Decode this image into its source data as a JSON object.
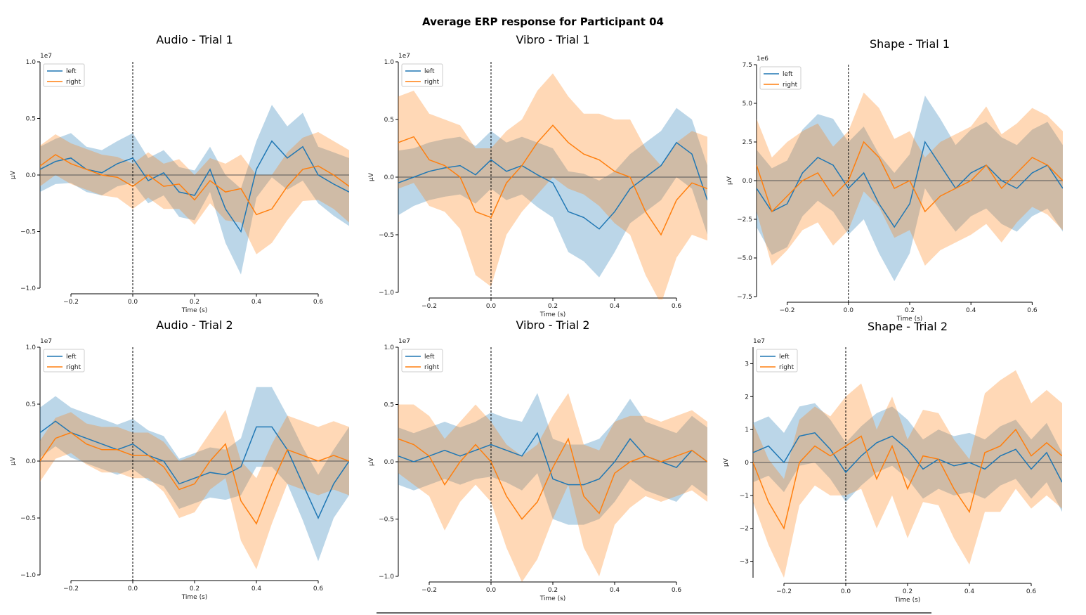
{
  "figure_title": "Average ERP response for Participant 04",
  "colors": {
    "left": "#1f77b4",
    "right": "#ff7f0e"
  },
  "chart_data": [
    {
      "type": "line",
      "title": "Audio - Trial 1",
      "xlabel": "Time (s)",
      "ylabel": "µV",
      "offset_label": "1e7",
      "xlim": [
        -0.3,
        0.7
      ],
      "ylim": [
        -1.0,
        1.0
      ],
      "xticks": [
        -0.2,
        0.0,
        0.2,
        0.4,
        0.6
      ],
      "xticklabels": [
        "−0.2",
        "0.0",
        "0.2",
        "0.4",
        "0.6"
      ],
      "yticks": [
        -1.0,
        -0.5,
        0.0,
        0.5,
        1.0
      ],
      "yticklabels": [
        "−1.0",
        "−0.5",
        "0.0",
        "0.5",
        "1.0"
      ],
      "legend": "top-left",
      "series": [
        {
          "name": "left",
          "x": [
            -0.3,
            -0.25,
            -0.2,
            -0.15,
            -0.1,
            -0.05,
            0,
            0.05,
            0.1,
            0.15,
            0.2,
            0.25,
            0.3,
            0.35,
            0.4,
            0.45,
            0.5,
            0.55,
            0.6,
            0.65,
            0.7
          ],
          "y": [
            0.05,
            0.12,
            0.15,
            0.05,
            0.02,
            0.1,
            0.15,
            -0.05,
            0.02,
            -0.15,
            -0.18,
            0.05,
            -0.3,
            -0.5,
            0.05,
            0.3,
            0.15,
            0.25,
            0.0,
            -0.08,
            -0.15
          ],
          "ci": [
            0.2,
            0.2,
            0.22,
            0.2,
            0.2,
            0.2,
            0.22,
            0.2,
            0.2,
            0.22,
            0.22,
            0.2,
            0.3,
            0.38,
            0.25,
            0.32,
            0.28,
            0.3,
            0.25,
            0.28,
            0.3
          ]
        },
        {
          "name": "right",
          "x": [
            -0.3,
            -0.25,
            -0.2,
            -0.15,
            -0.1,
            -0.05,
            0,
            0.05,
            0.1,
            0.15,
            0.2,
            0.25,
            0.3,
            0.35,
            0.4,
            0.45,
            0.5,
            0.55,
            0.6,
            0.65,
            0.7
          ],
          "y": [
            0.08,
            0.18,
            0.1,
            0.05,
            0.0,
            -0.02,
            -0.1,
            0.0,
            -0.1,
            -0.08,
            -0.22,
            -0.05,
            -0.15,
            -0.12,
            -0.35,
            -0.3,
            -0.1,
            0.05,
            0.08,
            0.0,
            -0.1
          ],
          "ci": [
            0.18,
            0.18,
            0.18,
            0.18,
            0.18,
            0.18,
            0.2,
            0.2,
            0.2,
            0.22,
            0.22,
            0.2,
            0.25,
            0.3,
            0.35,
            0.3,
            0.3,
            0.28,
            0.3,
            0.3,
            0.32
          ]
        }
      ]
    },
    {
      "type": "line",
      "title": "Vibro - Trial 1",
      "xlabel": "Time (s)",
      "ylabel": "µV",
      "offset_label": "1e7",
      "xlim": [
        -0.3,
        0.7
      ],
      "ylim": [
        -1.0,
        1.0
      ],
      "xticks": [
        -0.2,
        0.0,
        0.2,
        0.4,
        0.6
      ],
      "xticklabels": [
        "−0.2",
        "0.0",
        "0.2",
        "0.4",
        "0.6"
      ],
      "yticks": [
        -1.0,
        -0.5,
        0.0,
        0.5,
        1.0
      ],
      "yticklabels": [
        "−1.0",
        "−0.5",
        "0.0",
        "0.5",
        "1.0"
      ],
      "legend": "top-left",
      "series": [
        {
          "name": "left",
          "x": [
            -0.3,
            -0.25,
            -0.2,
            -0.15,
            -0.1,
            -0.05,
            0,
            0.05,
            0.1,
            0.15,
            0.2,
            0.25,
            0.3,
            0.35,
            0.4,
            0.45,
            0.5,
            0.55,
            0.6,
            0.65,
            0.7
          ],
          "y": [
            -0.05,
            0.0,
            0.05,
            0.08,
            0.1,
            0.02,
            0.15,
            0.05,
            0.1,
            0.02,
            -0.05,
            -0.3,
            -0.35,
            -0.45,
            -0.3,
            -0.1,
            0.0,
            0.1,
            0.3,
            0.2,
            -0.2
          ],
          "ci": [
            0.28,
            0.25,
            0.25,
            0.25,
            0.25,
            0.25,
            0.25,
            0.25,
            0.25,
            0.28,
            0.3,
            0.35,
            0.38,
            0.42,
            0.35,
            0.3,
            0.3,
            0.3,
            0.3,
            0.3,
            0.3
          ]
        },
        {
          "name": "right",
          "x": [
            -0.3,
            -0.25,
            -0.2,
            -0.15,
            -0.1,
            -0.05,
            0,
            0.05,
            0.1,
            0.15,
            0.2,
            0.25,
            0.3,
            0.35,
            0.4,
            0.45,
            0.5,
            0.55,
            0.6,
            0.65,
            0.7
          ],
          "y": [
            0.3,
            0.35,
            0.15,
            0.1,
            0.0,
            -0.3,
            -0.35,
            -0.05,
            0.1,
            0.3,
            0.45,
            0.3,
            0.2,
            0.15,
            0.05,
            0.0,
            -0.3,
            -0.5,
            -0.2,
            -0.05,
            -0.1
          ],
          "ci": [
            0.4,
            0.4,
            0.4,
            0.4,
            0.45,
            0.55,
            0.6,
            0.45,
            0.4,
            0.45,
            0.45,
            0.4,
            0.35,
            0.4,
            0.45,
            0.5,
            0.55,
            0.6,
            0.5,
            0.45,
            0.45
          ]
        }
      ]
    },
    {
      "type": "line",
      "title": "Shape - Trial 1",
      "xlabel": "Time (s)",
      "ylabel": "µV",
      "offset_label": "1e6",
      "xlim": [
        -0.3,
        0.7
      ],
      "ylim": [
        -7.5,
        7.5
      ],
      "xticks": [
        -0.2,
        0.0,
        0.2,
        0.4,
        0.6
      ],
      "xticklabels": [
        "−0.2",
        "0.0",
        "0.2",
        "0.4",
        "0.6"
      ],
      "yticks": [
        -7.5,
        -5.0,
        -2.5,
        0.0,
        2.5,
        5.0,
        7.5
      ],
      "yticklabels": [
        "−7.5",
        "−5.0",
        "−2.5",
        "0.0",
        "2.5",
        "5.0",
        "7.5"
      ],
      "legend": "top-left",
      "series": [
        {
          "name": "left",
          "x": [
            -0.3,
            -0.25,
            -0.2,
            -0.15,
            -0.1,
            -0.05,
            0,
            0.05,
            0.1,
            0.15,
            0.2,
            0.25,
            0.3,
            0.35,
            0.4,
            0.45,
            0.5,
            0.55,
            0.6,
            0.65,
            0.7
          ],
          "y": [
            -0.5,
            -2.0,
            -1.5,
            0.5,
            1.5,
            1.0,
            -0.5,
            0.5,
            -1.5,
            -3.0,
            -1.5,
            2.5,
            1.0,
            -0.5,
            0.5,
            1.0,
            0.0,
            -0.5,
            0.5,
            1.0,
            -0.5
          ],
          "ci": [
            2.5,
            2.8,
            2.8,
            2.8,
            2.8,
            3.0,
            3.0,
            3.0,
            3.2,
            3.5,
            3.2,
            3.0,
            3.0,
            2.8,
            2.8,
            2.8,
            2.8,
            2.8,
            2.8,
            2.8,
            2.8
          ]
        },
        {
          "name": "right",
          "x": [
            -0.3,
            -0.25,
            -0.2,
            -0.15,
            -0.1,
            -0.05,
            0,
            0.05,
            0.1,
            0.15,
            0.2,
            0.25,
            0.3,
            0.35,
            0.4,
            0.45,
            0.5,
            0.55,
            0.6,
            0.65,
            0.7
          ],
          "y": [
            1.0,
            -2.0,
            -1.0,
            0.0,
            0.5,
            -1.0,
            0.0,
            2.5,
            1.5,
            -0.5,
            0.0,
            -2.0,
            -1.0,
            -0.5,
            0.0,
            1.0,
            -0.5,
            0.5,
            1.5,
            1.0,
            0.0
          ],
          "ci": [
            3.0,
            3.5,
            3.5,
            3.2,
            3.2,
            3.2,
            3.2,
            3.2,
            3.2,
            3.2,
            3.2,
            3.5,
            3.5,
            3.5,
            3.5,
            3.8,
            3.5,
            3.2,
            3.2,
            3.2,
            3.2
          ]
        }
      ]
    },
    {
      "type": "line",
      "title": "Audio -  Trial 2",
      "xlabel": "Time (s)",
      "ylabel": "µV",
      "offset_label": "1e7",
      "xlim": [
        -0.3,
        0.7
      ],
      "ylim": [
        -1.0,
        1.0
      ],
      "xticks": [
        -0.2,
        0.0,
        0.2,
        0.4,
        0.6
      ],
      "xticklabels": [
        "−0.2",
        "0.0",
        "0.2",
        "0.4",
        "0.6"
      ],
      "yticks": [
        -1.0,
        -0.5,
        0.0,
        0.5,
        1.0
      ],
      "yticklabels": [
        "−1.0",
        "−0.5",
        "0.0",
        "0.5",
        "1.0"
      ],
      "legend": "top-left",
      "series": [
        {
          "name": "left",
          "x": [
            -0.3,
            -0.25,
            -0.2,
            -0.15,
            -0.1,
            -0.05,
            0,
            0.05,
            0.1,
            0.15,
            0.2,
            0.25,
            0.3,
            0.35,
            0.4,
            0.45,
            0.5,
            0.55,
            0.6,
            0.65,
            0.7
          ],
          "y": [
            0.25,
            0.35,
            0.25,
            0.2,
            0.15,
            0.1,
            0.15,
            0.05,
            0.0,
            -0.2,
            -0.15,
            -0.1,
            -0.12,
            -0.05,
            0.3,
            0.3,
            0.1,
            -0.2,
            -0.5,
            -0.2,
            0.0
          ],
          "ci": [
            0.22,
            0.22,
            0.22,
            0.22,
            0.22,
            0.22,
            0.22,
            0.22,
            0.22,
            0.22,
            0.22,
            0.22,
            0.22,
            0.25,
            0.35,
            0.35,
            0.3,
            0.32,
            0.38,
            0.3,
            0.3
          ]
        },
        {
          "name": "right",
          "x": [
            -0.3,
            -0.25,
            -0.2,
            -0.15,
            -0.1,
            -0.05,
            0,
            0.05,
            0.1,
            0.15,
            0.2,
            0.25,
            0.3,
            0.35,
            0.4,
            0.45,
            0.5,
            0.55,
            0.6,
            0.65,
            0.7
          ],
          "y": [
            0.0,
            0.2,
            0.25,
            0.15,
            0.1,
            0.1,
            0.05,
            0.05,
            -0.05,
            -0.25,
            -0.2,
            0.0,
            0.15,
            -0.35,
            -0.55,
            -0.2,
            0.1,
            0.05,
            0.0,
            0.05,
            0.0
          ],
          "ci": [
            0.18,
            0.18,
            0.18,
            0.18,
            0.2,
            0.2,
            0.2,
            0.2,
            0.22,
            0.25,
            0.25,
            0.25,
            0.3,
            0.35,
            0.4,
            0.35,
            0.3,
            0.3,
            0.3,
            0.3,
            0.3
          ]
        }
      ]
    },
    {
      "type": "line",
      "title": "Vibro - Trial 2",
      "xlabel": "Time (s)",
      "ylabel": "µV",
      "offset_label": "1e7",
      "xlim": [
        -0.3,
        0.7
      ],
      "ylim": [
        -1.0,
        1.0
      ],
      "xticks": [
        -0.2,
        0.0,
        0.2,
        0.4,
        0.6
      ],
      "xticklabels": [
        "−0.2",
        "0.0",
        "0.2",
        "0.4",
        "0.6"
      ],
      "yticks": [
        -1.0,
        -0.5,
        0.0,
        0.5,
        1.0
      ],
      "yticklabels": [
        "−1.0",
        "−0.5",
        "0.0",
        "0.5",
        "1.0"
      ],
      "legend": "top-left",
      "series": [
        {
          "name": "left",
          "x": [
            -0.3,
            -0.25,
            -0.2,
            -0.15,
            -0.1,
            -0.05,
            0,
            0.05,
            0.1,
            0.15,
            0.2,
            0.25,
            0.3,
            0.35,
            0.4,
            0.45,
            0.5,
            0.55,
            0.6,
            0.65,
            0.7
          ],
          "y": [
            0.05,
            0.0,
            0.05,
            0.1,
            0.05,
            0.1,
            0.15,
            0.1,
            0.05,
            0.25,
            -0.15,
            -0.2,
            -0.2,
            -0.15,
            0.0,
            0.2,
            0.05,
            0.0,
            -0.05,
            0.1,
            0.0
          ],
          "ci": [
            0.25,
            0.25,
            0.25,
            0.25,
            0.25,
            0.25,
            0.28,
            0.28,
            0.3,
            0.35,
            0.35,
            0.35,
            0.35,
            0.35,
            0.35,
            0.35,
            0.3,
            0.3,
            0.3,
            0.3,
            0.3
          ]
        },
        {
          "name": "right",
          "x": [
            -0.3,
            -0.25,
            -0.2,
            -0.15,
            -0.1,
            -0.05,
            0,
            0.05,
            0.1,
            0.15,
            0.2,
            0.25,
            0.3,
            0.35,
            0.4,
            0.45,
            0.5,
            0.55,
            0.6,
            0.65,
            0.7
          ],
          "y": [
            0.2,
            0.15,
            0.05,
            -0.2,
            0.0,
            0.15,
            0.0,
            -0.3,
            -0.5,
            -0.35,
            -0.05,
            0.2,
            -0.3,
            -0.45,
            -0.1,
            0.0,
            0.05,
            0.0,
            0.05,
            0.1,
            0.0
          ],
          "ci": [
            0.3,
            0.35,
            0.35,
            0.4,
            0.35,
            0.35,
            0.35,
            0.45,
            0.55,
            0.5,
            0.45,
            0.4,
            0.45,
            0.55,
            0.45,
            0.4,
            0.35,
            0.35,
            0.35,
            0.35,
            0.35
          ]
        }
      ]
    },
    {
      "type": "line",
      "title": "Shape - Trial 2",
      "xlabel": "Time (s)",
      "ylabel": "µV",
      "offset_label": "1e7",
      "xlim": [
        -0.3,
        0.7
      ],
      "ylim": [
        -3.5,
        3.5
      ],
      "xticks": [
        -0.2,
        0.0,
        0.2,
        0.4,
        0.6
      ],
      "xticklabels": [
        "−0.2",
        "0.0",
        "0.2",
        "0.4",
        "0.6"
      ],
      "yticks": [
        -3,
        -2,
        -1,
        0,
        1,
        2,
        3
      ],
      "yticklabels": [
        "−3",
        "−2",
        "−1",
        "0",
        "1",
        "2",
        "3"
      ],
      "legend": "top-left",
      "series": [
        {
          "name": "left",
          "x": [
            -0.3,
            -0.25,
            -0.2,
            -0.15,
            -0.1,
            -0.05,
            0,
            0.05,
            0.1,
            0.15,
            0.2,
            0.25,
            0.3,
            0.35,
            0.4,
            0.45,
            0.5,
            0.55,
            0.6,
            0.65,
            0.7
          ],
          "y": [
            0.3,
            0.5,
            0.0,
            0.8,
            0.9,
            0.4,
            -0.3,
            0.2,
            0.6,
            0.8,
            0.4,
            -0.2,
            0.1,
            -0.1,
            0.0,
            -0.2,
            0.2,
            0.4,
            -0.2,
            0.3,
            -0.6
          ],
          "ci": [
            0.9,
            0.9,
            0.9,
            0.9,
            0.9,
            0.9,
            0.9,
            0.9,
            0.9,
            0.9,
            0.9,
            0.9,
            0.9,
            0.9,
            0.9,
            0.9,
            0.9,
            0.9,
            0.9,
            0.9,
            0.9
          ]
        },
        {
          "name": "right",
          "x": [
            -0.3,
            -0.25,
            -0.2,
            -0.15,
            -0.1,
            -0.05,
            0,
            0.05,
            0.1,
            0.15,
            0.2,
            0.25,
            0.3,
            0.35,
            0.4,
            0.45,
            0.5,
            0.55,
            0.6,
            0.65,
            0.7
          ],
          "y": [
            0.0,
            -1.2,
            -2.0,
            0.0,
            0.5,
            0.2,
            0.5,
            0.8,
            -0.5,
            0.5,
            -0.8,
            0.2,
            0.1,
            -0.8,
            -1.5,
            0.3,
            0.5,
            1.0,
            0.2,
            0.6,
            0.2
          ],
          "ci": [
            1.2,
            1.3,
            1.5,
            1.3,
            1.2,
            1.2,
            1.5,
            1.6,
            1.5,
            1.5,
            1.5,
            1.4,
            1.4,
            1.5,
            1.6,
            1.8,
            2.0,
            1.8,
            1.6,
            1.6,
            1.6
          ]
        }
      ]
    }
  ]
}
